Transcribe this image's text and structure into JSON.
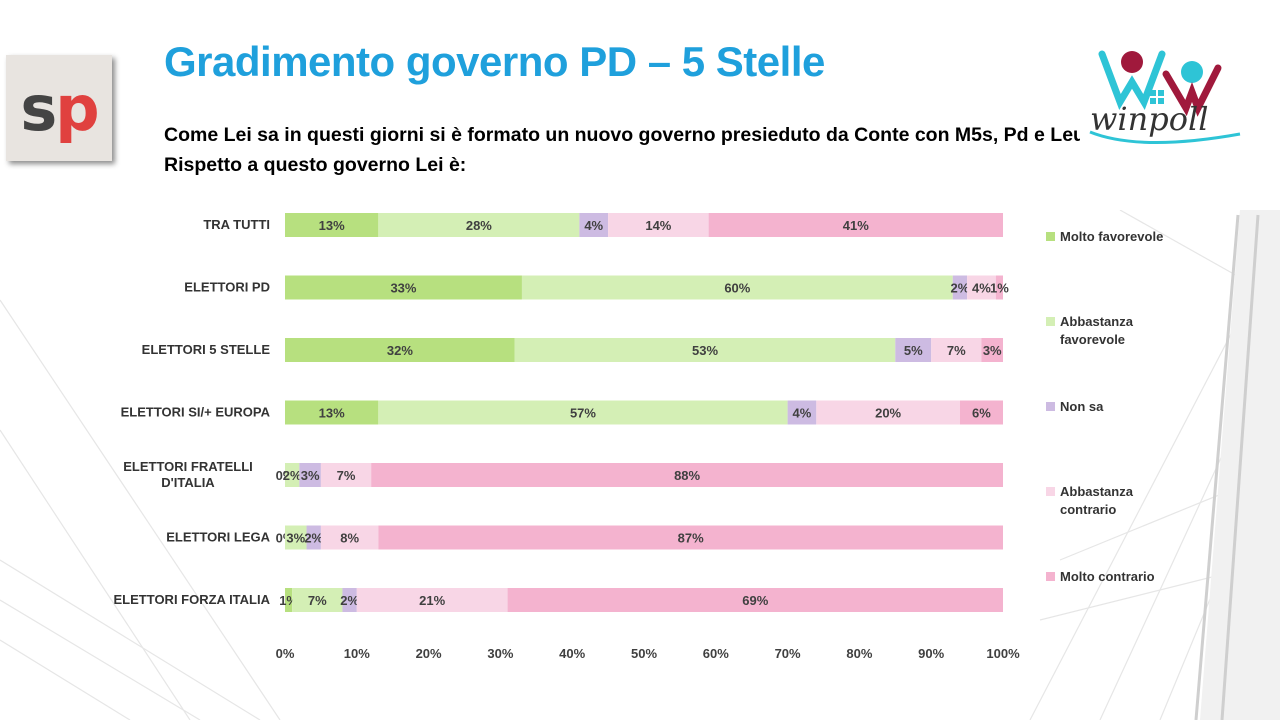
{
  "header": {
    "title": "Gradimento governo PD – 5 Stelle",
    "question": "Come Lei sa in questi giorni si è formato un nuovo governo presieduto da Conte con M5s, Pd e Leu. Rispetto a questo governo Lei è:"
  },
  "logo_left": {
    "s": "s",
    "p": "p",
    "colors": {
      "s": "#444444",
      "p": "#e0413f"
    }
  },
  "logo_right": {
    "text": "winpoll",
    "colors": {
      "teal": "#2ec4d6",
      "crimson": "#a0193c"
    }
  },
  "chart_data": {
    "type": "bar",
    "orientation": "horizontal",
    "stacked": "100%",
    "categories": [
      "TRA TUTTI",
      "ELETTORI PD",
      "ELETTORI 5 STELLE",
      "ELETTORI SI/+ EUROPA",
      "ELETTORI FRATELLI D'ITALIA",
      "ELETTORI LEGA",
      "ELETTORI FORZA ITALIA"
    ],
    "series": [
      {
        "name": "Molto favorevole",
        "color": "#b7e07f",
        "values": [
          13,
          33,
          32,
          13,
          0,
          0,
          1
        ],
        "labels": [
          "13%",
          "33%",
          "32%",
          "13%",
          "0%",
          "0%",
          "1%"
        ]
      },
      {
        "name": "Abbastanza favorevole",
        "color": "#d4efb5",
        "values": [
          28,
          60,
          53,
          57,
          2,
          3,
          7
        ],
        "labels": [
          "28%",
          "60%",
          "53%",
          "57%",
          "2%",
          "3%",
          "7%"
        ]
      },
      {
        "name": "Non sa",
        "color": "#cdbbe2",
        "values": [
          4,
          2,
          5,
          4,
          3,
          2,
          2
        ],
        "labels": [
          "4%",
          "2%",
          "5%",
          "4%",
          "3%",
          "2%",
          "2%"
        ]
      },
      {
        "name": "Abbastanza contrario",
        "color": "#f8d6e6",
        "values": [
          14,
          4,
          7,
          20,
          7,
          8,
          21
        ],
        "labels": [
          "14%",
          "4%",
          "7%",
          "20%",
          "7%",
          "8%",
          "21%"
        ]
      },
      {
        "name": "Molto contrario",
        "color": "#f4b3cf",
        "values": [
          41,
          1,
          3,
          6,
          88,
          87,
          69
        ],
        "labels": [
          "41%",
          "1%",
          "3%",
          "6%",
          "88%",
          "87%",
          "69%"
        ]
      }
    ],
    "x_ticks": [
      "0%",
      "10%",
      "20%",
      "30%",
      "40%",
      "50%",
      "60%",
      "70%",
      "80%",
      "90%",
      "100%"
    ],
    "xlim": [
      0,
      100
    ],
    "legend_position": "right",
    "grid": false
  }
}
